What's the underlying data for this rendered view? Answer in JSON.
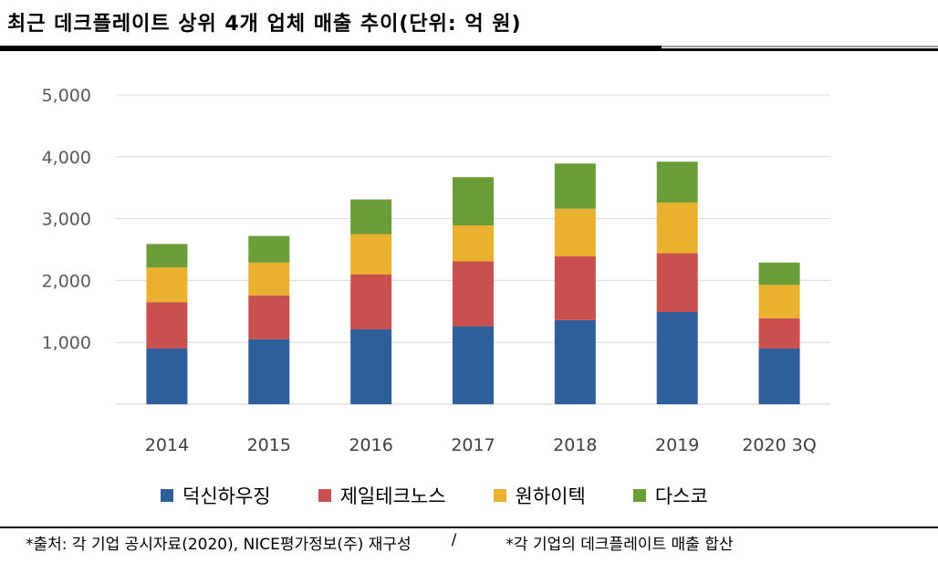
{
  "title": "최근 데크플레이트 상위 4개 업체 매출 추이(단위: 억 원)",
  "footer": {
    "source": "*출처: 각 기업 공시자료(2020), NICE평가정보(주) 재구성",
    "separator": "/",
    "note": "*각 기업의 데크플레이트 매출 합산"
  },
  "chart_data": {
    "type": "bar",
    "stacked": true,
    "title": "최근 데크플레이트 상위 4개 업체 매출 추이(단위: 억 원)",
    "categories": [
      "2014",
      "2015",
      "2016",
      "2017",
      "2018",
      "2019",
      "2020 3Q"
    ],
    "series": [
      {
        "name": "덕신하우징",
        "color": "#2E5F9A",
        "values": [
          900,
          1050,
          1210,
          1260,
          1360,
          1490,
          900
        ]
      },
      {
        "name": "제일테크노스",
        "color": "#C9504E",
        "values": [
          750,
          710,
          890,
          1050,
          1030,
          950,
          490
        ]
      },
      {
        "name": "원하이텍",
        "color": "#EAB12E",
        "values": [
          560,
          530,
          650,
          580,
          770,
          820,
          540
        ]
      },
      {
        "name": "다스코",
        "color": "#6A9D38",
        "values": [
          380,
          430,
          560,
          780,
          730,
          660,
          360
        ]
      }
    ],
    "yticks": [
      "1,000",
      "2,000",
      "3,000",
      "4,000",
      "5,000"
    ],
    "ylim": [
      0,
      5000
    ],
    "grid": true,
    "legend_position": "bottom"
  }
}
